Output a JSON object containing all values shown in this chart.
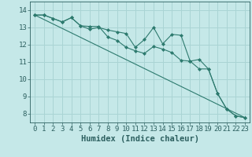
{
  "xlabel": "Humidex (Indice chaleur)",
  "background_color": "#c5e8e8",
  "grid_color": "#aad4d4",
  "line_color": "#2d7a6e",
  "xlim": [
    -0.5,
    23.5
  ],
  "ylim": [
    7.5,
    14.5
  ],
  "x_ticks": [
    0,
    1,
    2,
    3,
    4,
    5,
    6,
    7,
    8,
    9,
    10,
    11,
    12,
    13,
    14,
    15,
    16,
    17,
    18,
    19,
    20,
    21,
    22,
    23
  ],
  "y_ticks": [
    8,
    9,
    10,
    11,
    12,
    13,
    14
  ],
  "line1_x": [
    0,
    1,
    2,
    3,
    4,
    5,
    6,
    7,
    8,
    9,
    10,
    11,
    12,
    13,
    14,
    15,
    16,
    17,
    18,
    19,
    20,
    21,
    22,
    23
  ],
  "line1_y": [
    13.72,
    13.72,
    13.52,
    13.32,
    13.57,
    13.1,
    13.06,
    13.06,
    12.45,
    12.25,
    11.85,
    11.65,
    11.5,
    11.9,
    11.75,
    11.55,
    11.1,
    11.05,
    10.6,
    10.6,
    9.18,
    8.28,
    7.88,
    7.78
  ],
  "line2_x": [
    0,
    1,
    2,
    3,
    4,
    5,
    6,
    7,
    8,
    9,
    10,
    11,
    12,
    13,
    14,
    15,
    16,
    17,
    18,
    19,
    20,
    21,
    22,
    23
  ],
  "line2_y": [
    13.72,
    13.72,
    13.52,
    13.32,
    13.57,
    13.1,
    12.9,
    13.0,
    12.85,
    12.75,
    12.65,
    11.85,
    12.3,
    13.0,
    12.05,
    12.6,
    12.55,
    11.05,
    11.15,
    10.6,
    9.18,
    8.28,
    7.88,
    7.78
  ],
  "trend_x": [
    0,
    23
  ],
  "trend_y": [
    13.72,
    7.78
  ],
  "font_color": "#2d6060",
  "tick_fontsize": 6.5,
  "label_fontsize": 7.5
}
